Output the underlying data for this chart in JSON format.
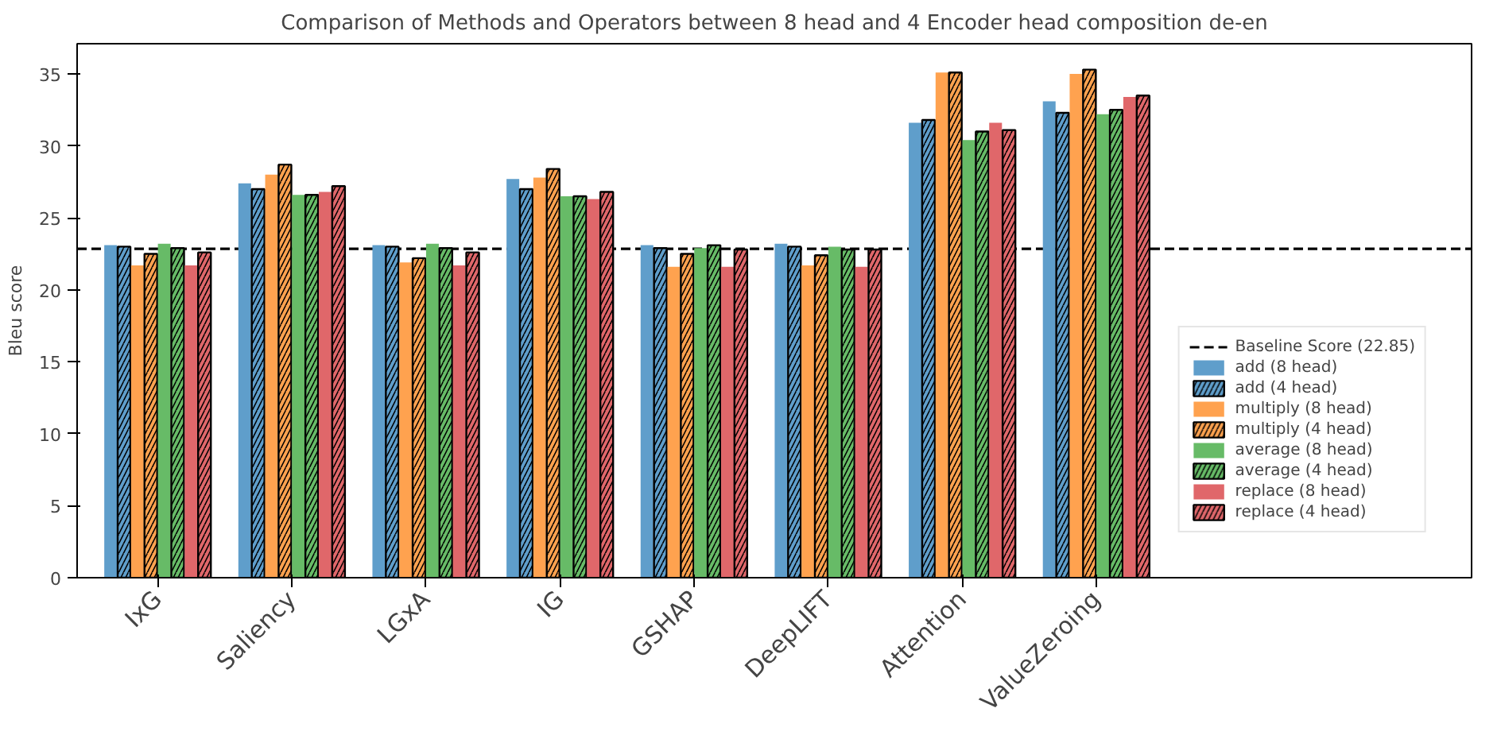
{
  "chart_data": {
    "type": "bar",
    "title": "Comparison of Methods and Operators between 8 head and 4 Encoder head composition de-en",
    "ylabel": "Bleu score",
    "categories": [
      "IxG",
      "Saliency",
      "LGxA",
      "IG",
      "GSHAP",
      "DeepLIFT",
      "Attention",
      "ValueZeroing"
    ],
    "series": [
      {
        "name": "add (8 head)",
        "color": "#5f9ecb",
        "values": [
          23.1,
          27.4,
          23.1,
          27.7,
          23.1,
          23.2,
          31.6,
          33.1
        ]
      },
      {
        "name": "add (4 head)",
        "color": "#5f9ecb",
        "values": [
          23.0,
          27.0,
          23.0,
          27.0,
          22.9,
          23.0,
          31.8,
          32.3
        ]
      },
      {
        "name": "multiply (8 head)",
        "color": "#ffa24f",
        "values": [
          21.7,
          28.0,
          21.9,
          27.8,
          21.6,
          21.7,
          35.1,
          35.0
        ]
      },
      {
        "name": "multiply (4 head)",
        "color": "#ffa24f",
        "values": [
          22.5,
          28.7,
          22.2,
          28.4,
          22.5,
          22.4,
          35.1,
          35.3
        ]
      },
      {
        "name": "average (8 head)",
        "color": "#67bb67",
        "values": [
          23.2,
          26.6,
          23.2,
          26.5,
          22.9,
          23.0,
          30.4,
          32.2
        ]
      },
      {
        "name": "average (4 head)",
        "color": "#67bb67",
        "values": [
          22.9,
          26.6,
          22.9,
          26.5,
          23.1,
          22.8,
          31.0,
          32.5
        ]
      },
      {
        "name": "replace (8 head)",
        "color": "#e0676a",
        "values": [
          21.7,
          26.8,
          21.7,
          26.3,
          21.6,
          21.6,
          31.6,
          33.4
        ]
      },
      {
        "name": "replace (4 head)",
        "color": "#e0676a",
        "values": [
          22.6,
          27.2,
          22.6,
          26.8,
          22.8,
          22.8,
          31.1,
          33.5
        ]
      }
    ],
    "ylim": [
      0,
      37.1
    ],
    "yticks": [
      0,
      5,
      10,
      15,
      20,
      25,
      30,
      35
    ],
    "ref_lines": [
      {
        "axis": "y",
        "value": 22.85,
        "label": "Baseline Score (22.85)",
        "color": "#000000",
        "line_style": "dashed"
      }
    ],
    "grid": false,
    "legend": "bottom right"
  }
}
